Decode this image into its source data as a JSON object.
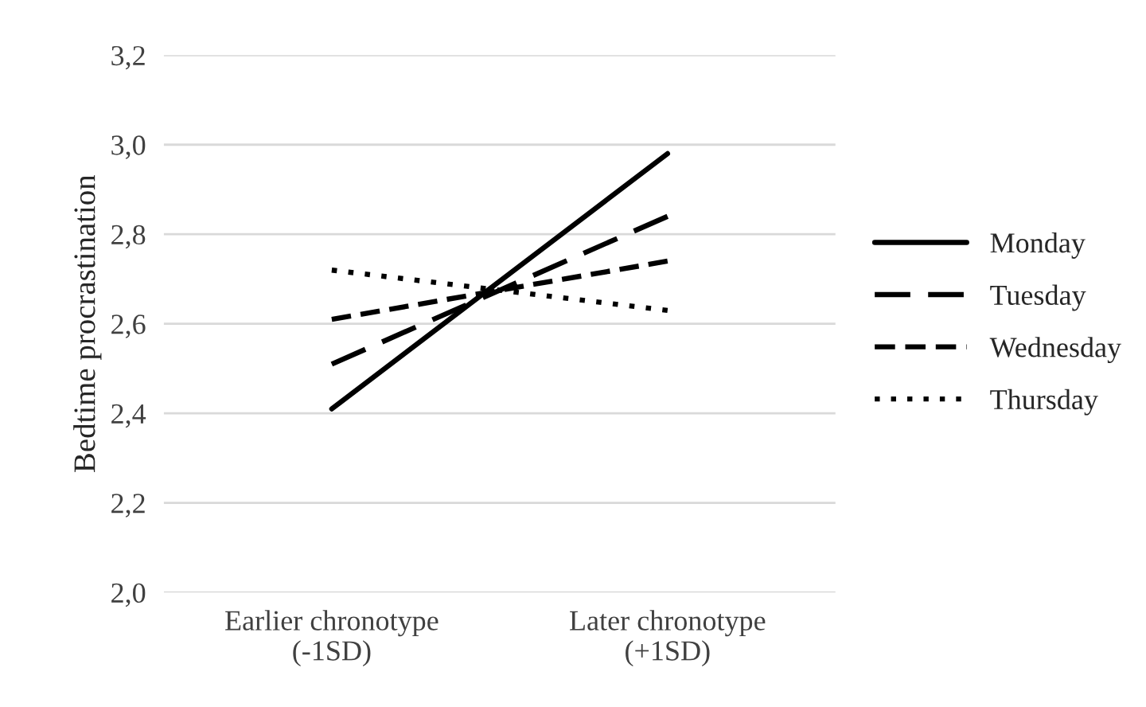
{
  "chart_data": {
    "type": "line",
    "ylabel": "Bedtime procrastination",
    "categories": [
      "Earlier chronotype\n(-1SD)",
      "Later chronotype\n(+1SD)"
    ],
    "series": [
      {
        "name": "Monday",
        "color": "#000000",
        "line_style": "solid",
        "values": [
          2.41,
          2.98
        ]
      },
      {
        "name": "Tuesday",
        "color": "#000000",
        "line_style": "longdash",
        "values": [
          2.51,
          2.84
        ]
      },
      {
        "name": "Wednesday",
        "color": "#000000",
        "line_style": "dashed",
        "values": [
          2.61,
          2.74
        ]
      },
      {
        "name": "Thursday",
        "color": "#000000",
        "line_style": "dotted",
        "values": [
          2.72,
          2.63
        ]
      }
    ],
    "ylim": [
      2.0,
      3.2
    ],
    "yticks": [
      {
        "value": 2.0,
        "label": "2,0"
      },
      {
        "value": 2.2,
        "label": "2,2"
      },
      {
        "value": 2.4,
        "label": "2,4"
      },
      {
        "value": 2.6,
        "label": "2,6"
      },
      {
        "value": 2.8,
        "label": "2,8"
      },
      {
        "value": 3.0,
        "label": "3,0"
      },
      {
        "value": 3.2,
        "label": "3,2"
      }
    ],
    "grid": "y",
    "legend": "right",
    "marker": "none"
  }
}
